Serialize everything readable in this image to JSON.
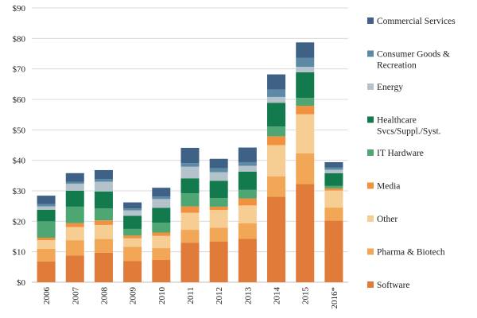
{
  "chart_data": {
    "type": "bar",
    "stacked": true,
    "categories": [
      "2006",
      "2007",
      "2008",
      "2009",
      "2010",
      "2011",
      "2012",
      "2013",
      "2014",
      "2015",
      "2016*"
    ],
    "ylim": [
      0,
      90
    ],
    "y_ticks": [
      "$0",
      "$10",
      "$20",
      "$30",
      "$40",
      "$50",
      "$60",
      "$70",
      "$80",
      "$90"
    ],
    "grid": true,
    "legend_position": "right",
    "series": [
      {
        "name": "Software",
        "color": "#e07b39",
        "values": [
          6.8,
          8.8,
          9.7,
          7.0,
          7.3,
          13.0,
          13.3,
          14.3,
          28.1,
          32.2,
          20.2
        ]
      },
      {
        "name": "Pharma & Biotech",
        "color": "#f2a756",
        "values": [
          4.2,
          5.0,
          4.5,
          4.6,
          3.9,
          4.2,
          4.6,
          5.0,
          6.6,
          10.1,
          4.3
        ]
      },
      {
        "name": "Other",
        "color": "#f6cd93",
        "values": [
          2.8,
          4.3,
          4.6,
          2.8,
          4.0,
          5.6,
          5.8,
          5.9,
          10.3,
          12.8,
          5.6
        ]
      },
      {
        "name": "Media",
        "color": "#f1913f",
        "values": [
          0.8,
          1.3,
          1.5,
          0.9,
          1.1,
          2.1,
          1.1,
          2.3,
          2.9,
          2.8,
          0.7
        ]
      },
      {
        "name": "IT Hardware",
        "color": "#4ea672",
        "values": [
          5.4,
          5.4,
          3.9,
          2.2,
          3.2,
          4.3,
          2.8,
          2.8,
          3.2,
          2.6,
          0.8
        ]
      },
      {
        "name": "Healthcare Svcs/Suppl./Syst.",
        "color": "#127a4d",
        "values": [
          3.8,
          5.2,
          5.6,
          4.3,
          4.9,
          4.9,
          5.7,
          6.0,
          7.8,
          8.4,
          4.2
        ]
      },
      {
        "name": "Energy",
        "color": "#b4c2cc",
        "values": [
          1.1,
          2.3,
          3.2,
          1.8,
          2.9,
          3.8,
          2.8,
          1.9,
          1.9,
          1.8,
          1.1
        ]
      },
      {
        "name": "Consumer Goods & Recreation",
        "color": "#5c8aa6",
        "values": [
          0.8,
          0.7,
          0.9,
          0.6,
          0.8,
          1.2,
          1.3,
          1.2,
          2.4,
          2.9,
          0.7
        ]
      },
      {
        "name": "Commercial Services",
        "color": "#3e6185",
        "values": [
          2.7,
          2.8,
          2.9,
          2.0,
          2.9,
          5.0,
          3.1,
          4.8,
          5.0,
          5.1,
          1.8
        ]
      }
    ],
    "legend_order": [
      "Commercial Services",
      "Consumer Goods & Recreation",
      "Energy",
      "Healthcare Svcs/Suppl./Syst.",
      "IT Hardware",
      "Media",
      "Other",
      "Pharma & Biotech",
      "Software"
    ]
  }
}
